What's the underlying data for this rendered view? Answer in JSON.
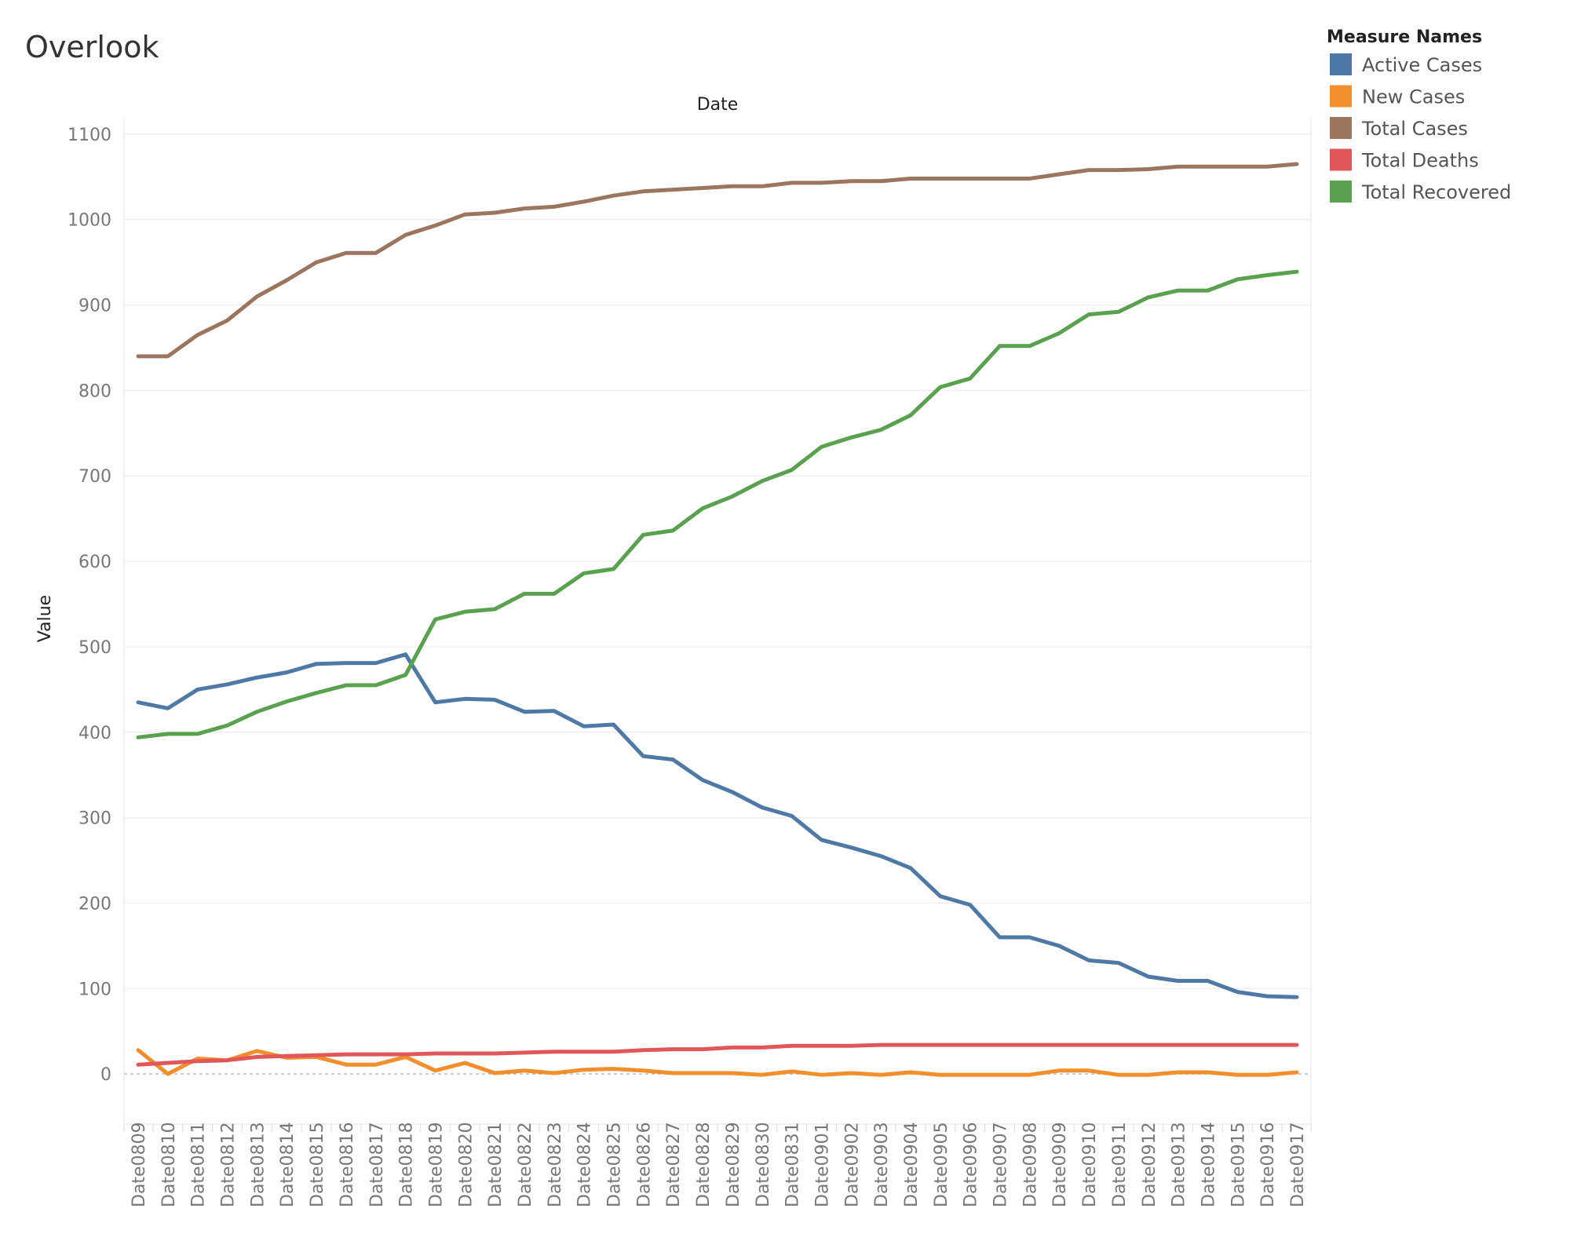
{
  "page": {
    "title": "Overlook"
  },
  "chart_data": {
    "type": "line",
    "title": "Overlook",
    "xlabel": "Date",
    "ylabel": "Value",
    "ylim": [
      -55,
      1110
    ],
    "yticks": [
      0,
      100,
      200,
      300,
      400,
      500,
      600,
      700,
      800,
      900,
      1000,
      1100
    ],
    "grid": true,
    "legend_title": "Measure Names",
    "legend_position": "top-right",
    "categories": [
      "Date0809",
      "Date0810",
      "Date0811",
      "Date0812",
      "Date0813",
      "Date0814",
      "Date0815",
      "Date0816",
      "Date0817",
      "Date0818",
      "Date0819",
      "Date0820",
      "Date0821",
      "Date0822",
      "Date0823",
      "Date0824",
      "Date0825",
      "Date0826",
      "Date0827",
      "Date0828",
      "Date0829",
      "Date0830",
      "Date0831",
      "Date0901",
      "Date0902",
      "Date0903",
      "Date0904",
      "Date0905",
      "Date0906",
      "Date0907",
      "Date0908",
      "Date0909",
      "Date0910",
      "Date0911",
      "Date0912",
      "Date0913",
      "Date0914",
      "Date0915",
      "Date0916",
      "Date0917"
    ],
    "series": [
      {
        "name": "Active Cases",
        "color": "#4e79a7",
        "values": [
          435,
          428,
          450,
          456,
          464,
          470,
          480,
          481,
          481,
          491,
          435,
          439,
          438,
          424,
          425,
          407,
          409,
          372,
          368,
          344,
          330,
          312,
          302,
          274,
          265,
          255,
          241,
          208,
          198,
          160,
          160,
          150,
          133,
          130,
          114,
          109,
          109,
          96,
          91,
          90
        ]
      },
      {
        "name": "New Cases",
        "color": "#f28e2b",
        "values": [
          28,
          0,
          18,
          16,
          27,
          19,
          20,
          11,
          11,
          20,
          4,
          13,
          1,
          4,
          1,
          5,
          6,
          4,
          1,
          1,
          1,
          -1,
          3,
          -1,
          1,
          -1,
          2,
          -1,
          -1,
          -1,
          -1,
          4,
          4,
          -1,
          -1,
          2,
          2,
          -1,
          -1,
          2
        ]
      },
      {
        "name": "Total Cases",
        "color": "#9c755f",
        "values": [
          840,
          840,
          865,
          882,
          910,
          929,
          950,
          961,
          961,
          982,
          993,
          1006,
          1008,
          1013,
          1015,
          1021,
          1028,
          1033,
          1035,
          1037,
          1039,
          1039,
          1043,
          1043,
          1045,
          1045,
          1048,
          1048,
          1048,
          1048,
          1048,
          1053,
          1058,
          1058,
          1059,
          1062,
          1062,
          1062,
          1062,
          1065
        ]
      },
      {
        "name": "Total Deaths",
        "color": "#e15759",
        "values": [
          11,
          13,
          15,
          16,
          20,
          21,
          22,
          23,
          23,
          23,
          24,
          24,
          24,
          25,
          26,
          26,
          26,
          28,
          29,
          29,
          31,
          31,
          33,
          33,
          33,
          34,
          34,
          34,
          34,
          34,
          34,
          34,
          34,
          34,
          34,
          34,
          34,
          34,
          34,
          34
        ]
      },
      {
        "name": "Total Recovered",
        "color": "#59a14f",
        "values": [
          394,
          398,
          398,
          408,
          424,
          436,
          446,
          455,
          455,
          467,
          532,
          541,
          544,
          562,
          562,
          586,
          591,
          631,
          636,
          662,
          676,
          694,
          707,
          734,
          745,
          754,
          771,
          804,
          814,
          852,
          852,
          867,
          889,
          892,
          909,
          917,
          917,
          930,
          935,
          939
        ]
      }
    ]
  }
}
